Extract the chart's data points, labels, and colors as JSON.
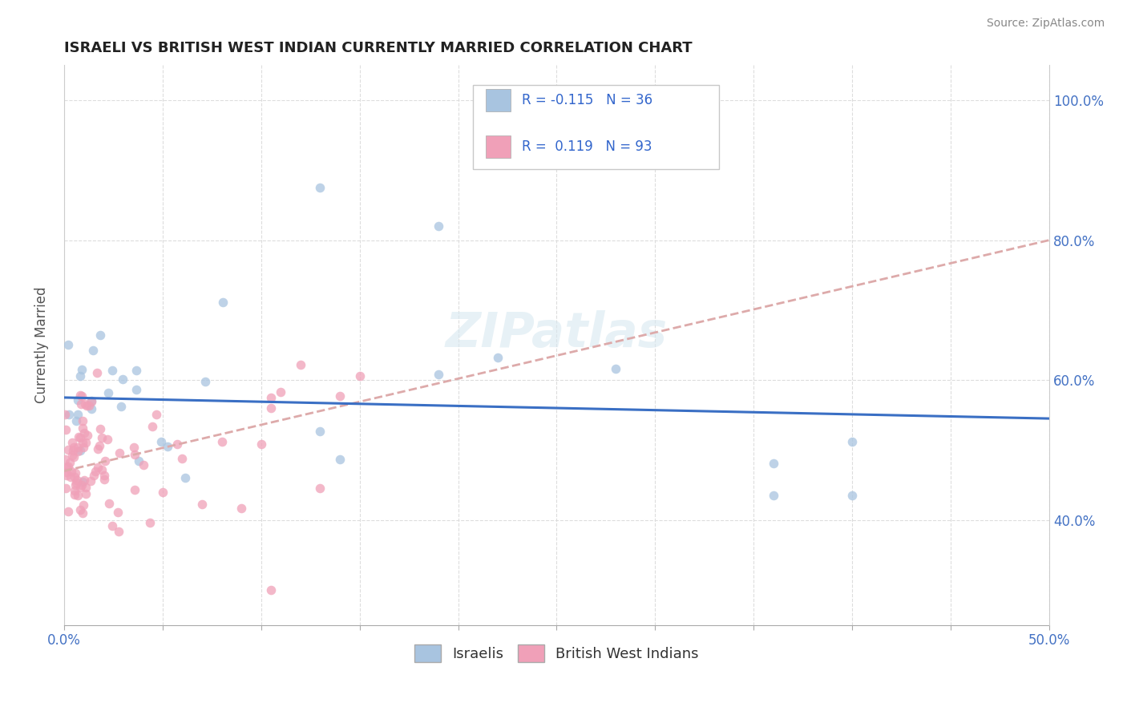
{
  "title": "ISRAELI VS BRITISH WEST INDIAN CURRENTLY MARRIED CORRELATION CHART",
  "source": "Source: ZipAtlas.com",
  "ylabel_label": "Currently Married",
  "xlim": [
    0.0,
    0.5
  ],
  "ylim": [
    0.25,
    1.05
  ],
  "xtick_positions": [
    0.0,
    0.05,
    0.1,
    0.15,
    0.2,
    0.25,
    0.3,
    0.35,
    0.4,
    0.45,
    0.5
  ],
  "xtick_labels": [
    "0.0%",
    "",
    "",
    "",
    "",
    "",
    "",
    "",
    "",
    "",
    "50.0%"
  ],
  "ytick_positions": [
    0.4,
    0.6,
    0.8,
    1.0
  ],
  "ytick_labels": [
    "40.0%",
    "60.0%",
    "80.0%",
    "100.0%"
  ],
  "israeli_color": "#a8c4e0",
  "bwi_color": "#f0a0b8",
  "israeli_line_color": "#3a6fc4",
  "bwi_line_color": "#e08090",
  "watermark_text": "ZIPatlas",
  "r_israeli": -0.115,
  "n_israeli": 36,
  "r_bwi": 0.119,
  "n_bwi": 93,
  "isr_seed": 42,
  "bwi_seed": 7
}
